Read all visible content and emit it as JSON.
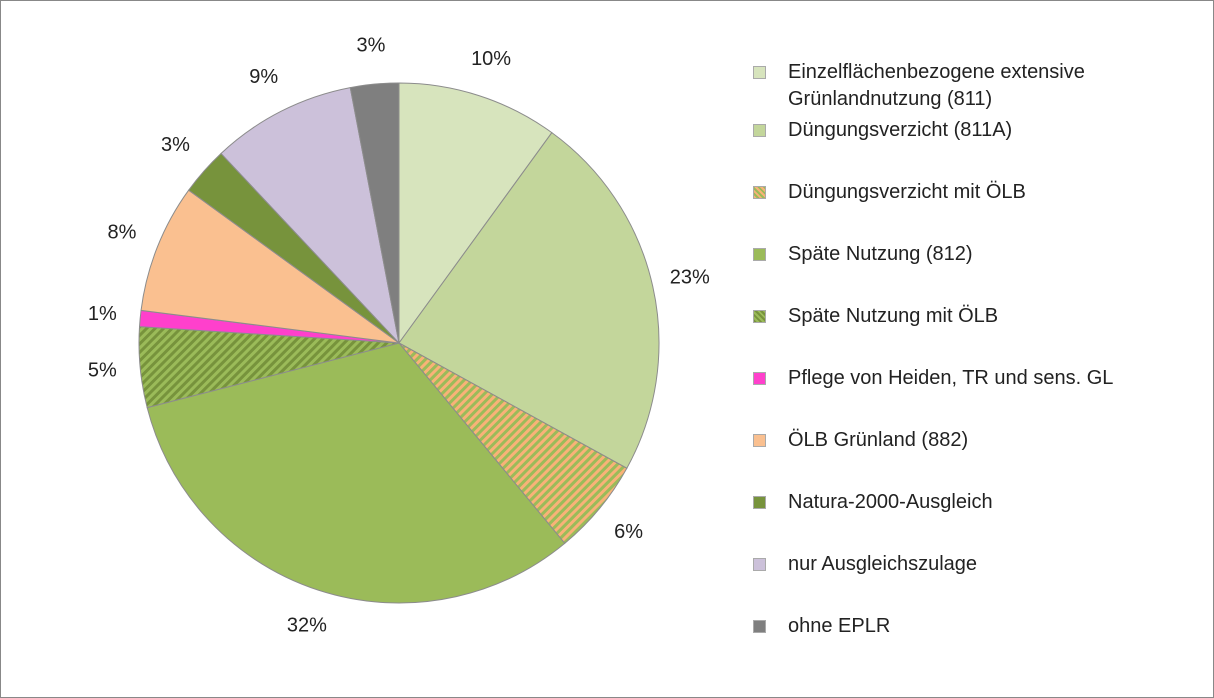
{
  "chart_data": {
    "type": "pie",
    "categories": [
      "Einzelflächenbezogene extensive Grünlandnutzung (811)",
      "Düngungsverzicht (811A)",
      "Düngungsverzicht mit ÖLB",
      "Späte Nutzung  (812)",
      "Späte Nutzung mit ÖLB",
      "Pflege von Heiden, TR und sens. GL",
      "ÖLB Grünland (882)",
      "Natura-2000-Ausgleich",
      "nur Ausgleichszulage",
      "ohne EPLR"
    ],
    "values": [
      10,
      23,
      6,
      32,
      5,
      1,
      8,
      3,
      9,
      3
    ],
    "value_labels": [
      "10%",
      "23%",
      "6%",
      "32%",
      "5%",
      "1%",
      "8%",
      "3%",
      "9%",
      "3%"
    ],
    "colors": [
      "#d7e4bd",
      "#c3d69b",
      "#f9b278",
      "#9bbb59",
      "#77933c",
      "#ff40cc",
      "#fac090",
      "#77933c",
      "#ccc1da",
      "#7f7f7f"
    ],
    "hatch_colors": [
      null,
      null,
      "#9bbb59",
      null,
      "#9bbb59",
      null,
      null,
      null,
      null,
      null
    ],
    "legend": "right"
  }
}
